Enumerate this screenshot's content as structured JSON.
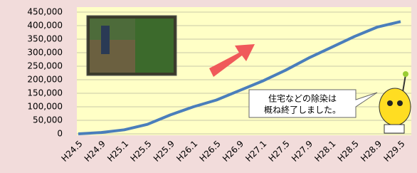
{
  "chart_data": {
    "type": "line",
    "categories": [
      "H24.5",
      "H24.9",
      "H25.1",
      "H25.5",
      "H25.9",
      "H26.1",
      "H26.5",
      "H26.9",
      "H27.1",
      "H27.5",
      "H27.9",
      "H28.1",
      "H28.5",
      "H28.9",
      "H29.5"
    ],
    "series": [
      {
        "color": "#4a7ebb",
        "values": [
          0,
          5000,
          15000,
          35000,
          70000,
          100000,
          125000,
          160000,
          195000,
          235000,
          280000,
          320000,
          360000,
          395000,
          415000
        ]
      }
    ],
    "ylim": [
      0,
      450000
    ],
    "yticks": [
      0,
      {
        "value": 50000,
        "label": "50,000"
      },
      {
        "value": 100000,
        "label": "100,000"
      },
      {
        "value": 150000,
        "label": "150,000"
      },
      {
        "value": 200000,
        "label": "200,000"
      },
      {
        "value": 250000,
        "label": "250,000"
      },
      {
        "value": 300000,
        "label": "300,000"
      },
      {
        "value": 350000,
        "label": "350,000"
      },
      {
        "value": 400000,
        "label": "400,000"
      },
      {
        "value": 450000,
        "label": "450,000"
      }
    ],
    "grid": true,
    "annotation": [
      "住宅などの除染は",
      "概ね終了しました。"
    ]
  }
}
